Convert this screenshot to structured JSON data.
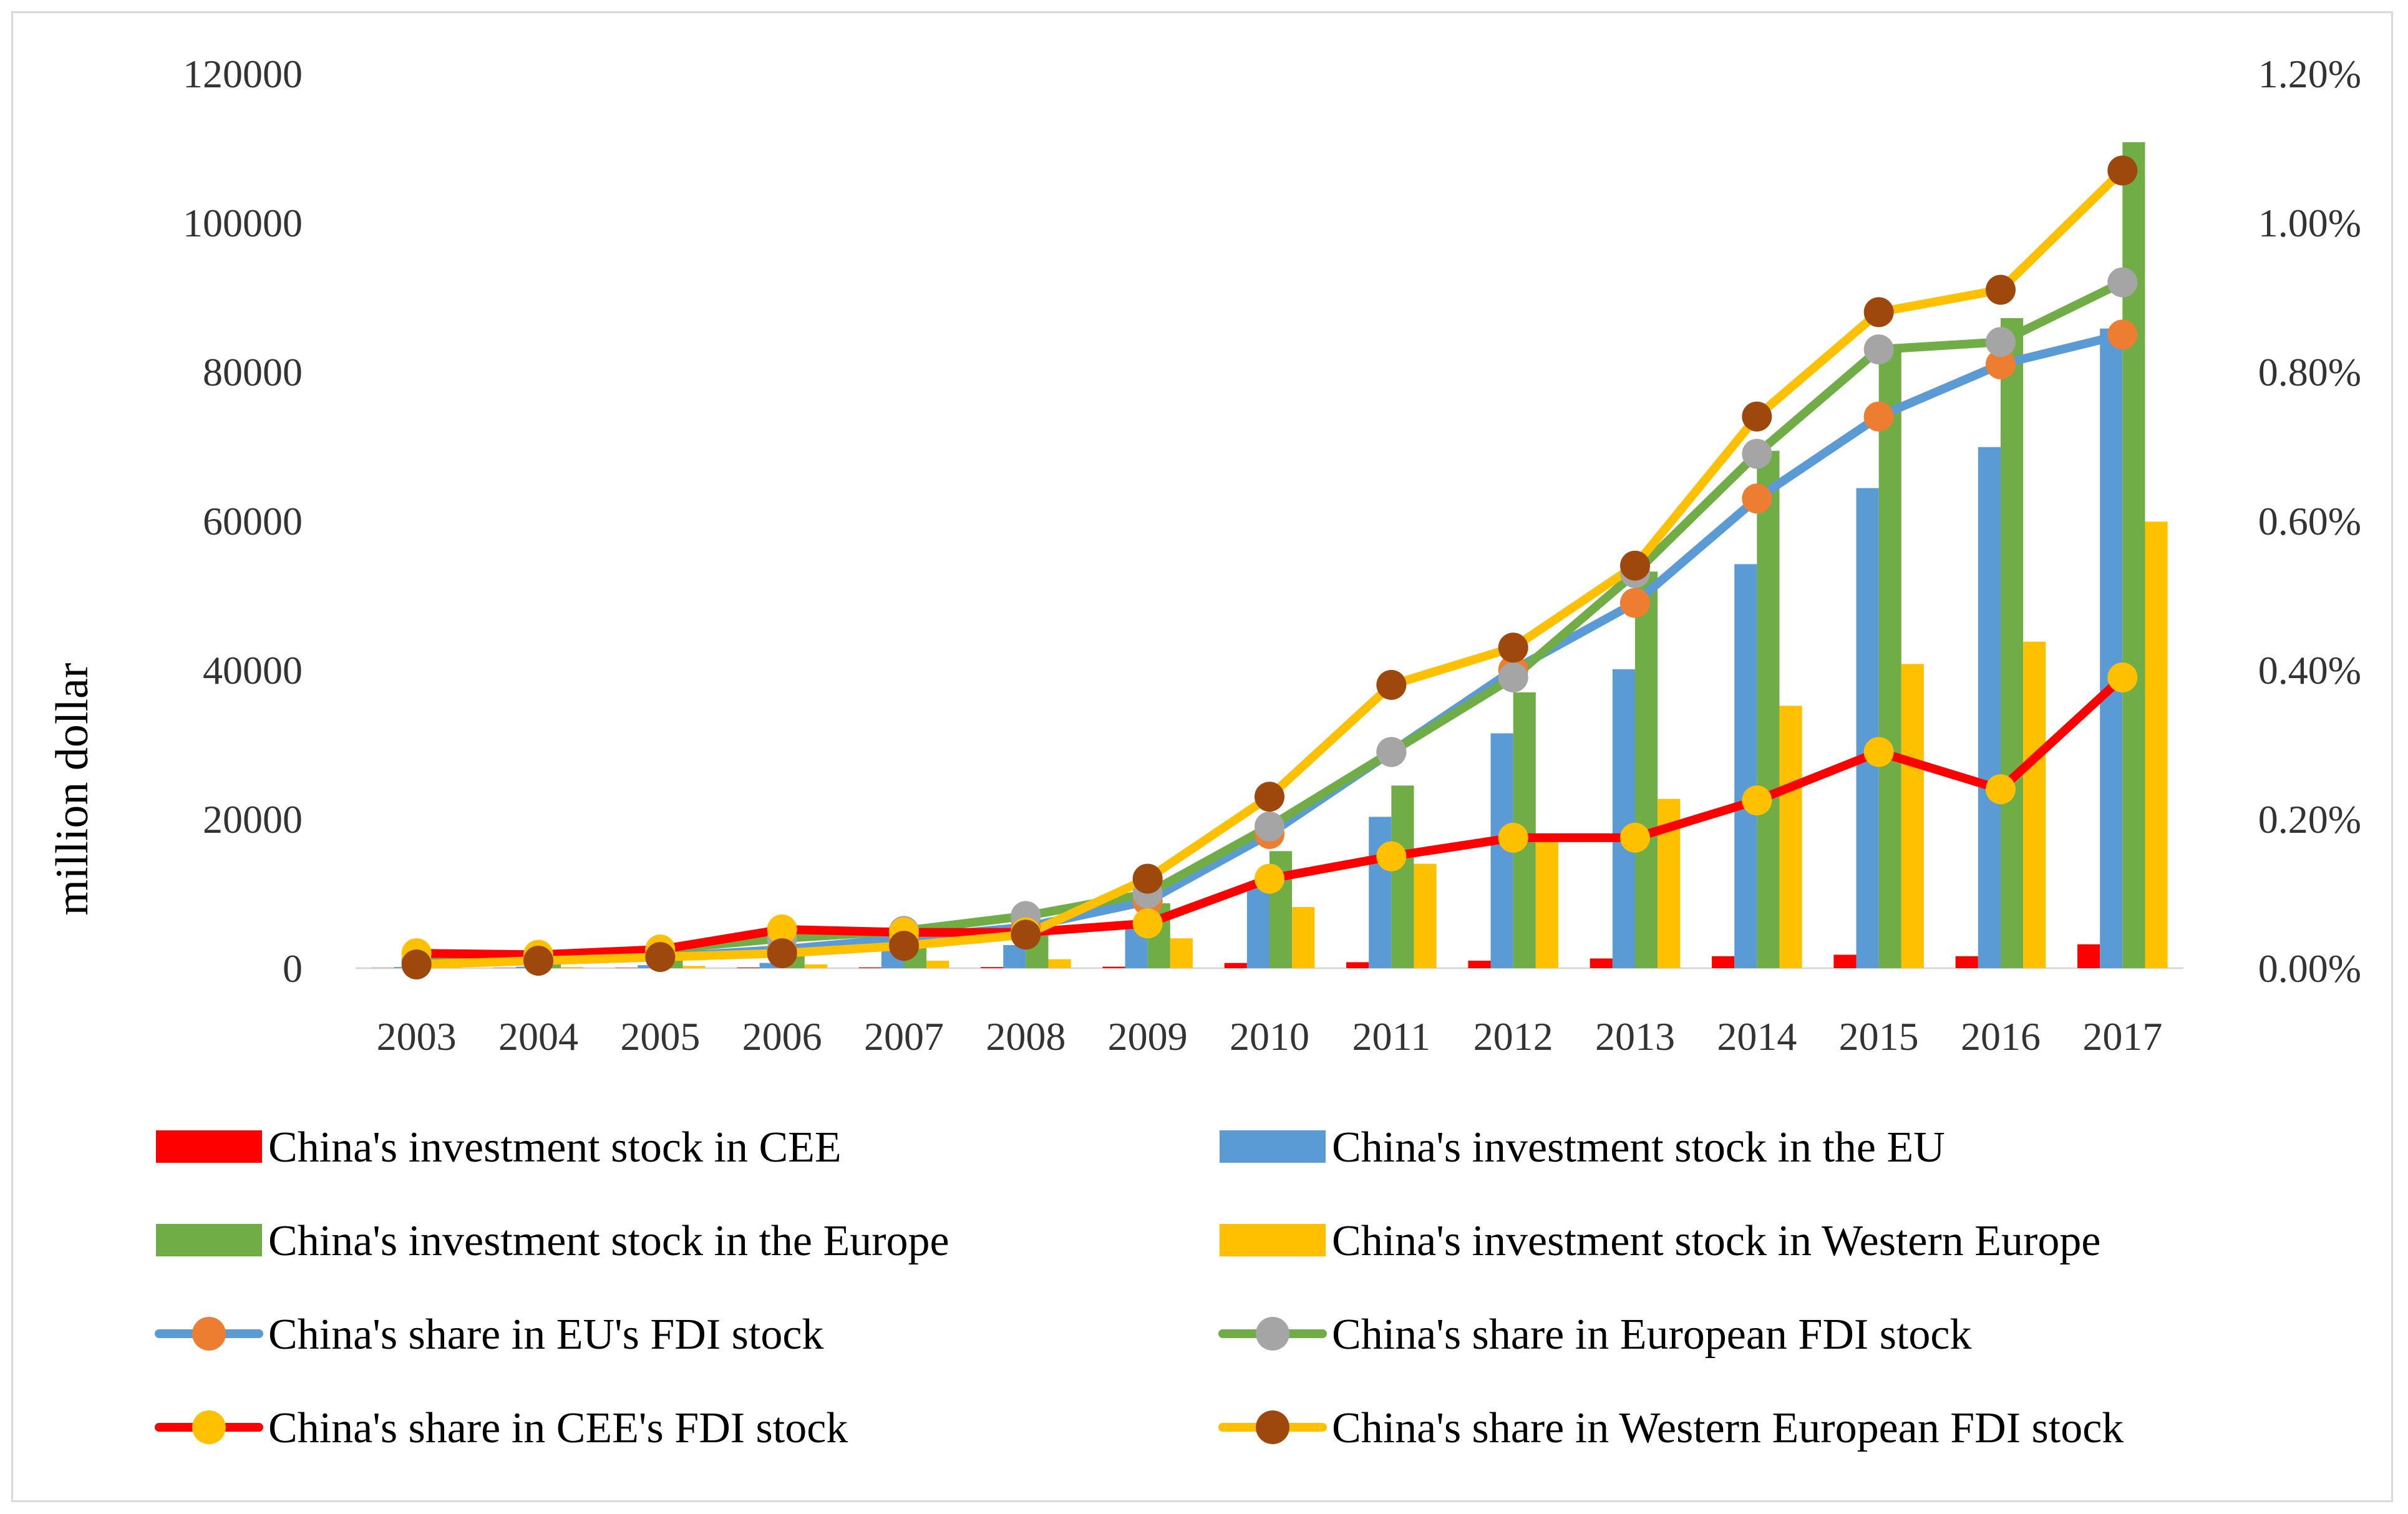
{
  "chart_data": {
    "type": "bar+line",
    "title": "",
    "ylabel": "million dollar",
    "ylim": [
      0,
      120000
    ],
    "y_ticks": [
      "0",
      "20000",
      "40000",
      "60000",
      "80000",
      "100000",
      "120000"
    ],
    "y2lim": [
      0,
      0.012
    ],
    "y2_ticks": [
      "0.00%",
      "0.20%",
      "0.40%",
      "0.60%",
      "0.80%",
      "1.00%",
      "1.20%"
    ],
    "categories": [
      "2003",
      "2004",
      "2005",
      "2006",
      "2007",
      "2008",
      "2009",
      "2010",
      "2011",
      "2012",
      "2013",
      "2014",
      "2015",
      "2016",
      "2017"
    ],
    "bar_series": [
      {
        "name": "China's investment stock in CEE",
        "color": "#ff0000",
        "values": [
          20,
          30,
          40,
          80,
          100,
          150,
          200,
          700,
          800,
          1000,
          1300,
          1600,
          1800,
          1600,
          3200
        ]
      },
      {
        "name": "China's investment stock in the EU",
        "color": "#5b9bd5",
        "values": [
          150,
          200,
          400,
          700,
          2900,
          3100,
          6000,
          11300,
          20300,
          31500,
          40100,
          54200,
          64400,
          69900,
          85800
        ]
      },
      {
        "name": "China's investment stock in the Europe",
        "color": "#70ad47",
        "values": [
          500,
          700,
          1300,
          2300,
          4500,
          5100,
          8700,
          15700,
          24500,
          37000,
          53200,
          69400,
          83700,
          87200,
          110800
        ]
      },
      {
        "name": "China's investment stock in Western Europe",
        "color": "#ffc000",
        "values": [
          100,
          150,
          300,
          500,
          1000,
          1200,
          4000,
          8200,
          14000,
          17000,
          22700,
          35200,
          40800,
          43800,
          59900
        ]
      }
    ],
    "line_series": [
      {
        "name": "China's share in EU's FDI stock",
        "line_color": "#5b9bd5",
        "marker_color": "#ed7d31",
        "values": [
          0.0001,
          0.0001,
          0.00015,
          0.00025,
          0.0004,
          0.00055,
          0.0009,
          0.0018,
          0.0029,
          0.004,
          0.0049,
          0.0063,
          0.0074,
          0.0081,
          0.0085
        ]
      },
      {
        "name": "China's share in European FDI stock",
        "line_color": "#70ad47",
        "marker_color": "#a5a5a5",
        "values": [
          0.0001,
          0.00015,
          0.00025,
          0.0004,
          0.0005,
          0.0007,
          0.001,
          0.0019,
          0.0029,
          0.0039,
          0.0053,
          0.0069,
          0.0083,
          0.0084,
          0.0092
        ]
      },
      {
        "name": "China's share in CEE's FDI stock",
        "line_color": "#ff0000",
        "marker_color": "#ffc000",
        "values": [
          0.0002,
          0.00018,
          0.00025,
          0.00052,
          0.00048,
          0.00048,
          0.0006,
          0.0012,
          0.0015,
          0.00175,
          0.00175,
          0.00225,
          0.0029,
          0.0024,
          0.0039
        ]
      },
      {
        "name": "China's share in Western European FDI stock",
        "line_color": "#ffc000",
        "marker_color": "#9e480e",
        "values": [
          5e-05,
          0.0001,
          0.00015,
          0.0002,
          0.0003,
          0.00045,
          0.0012,
          0.0023,
          0.0038,
          0.0043,
          0.0054,
          0.0074,
          0.0088,
          0.0091,
          0.0107
        ]
      }
    ],
    "legend_position": "bottom"
  }
}
